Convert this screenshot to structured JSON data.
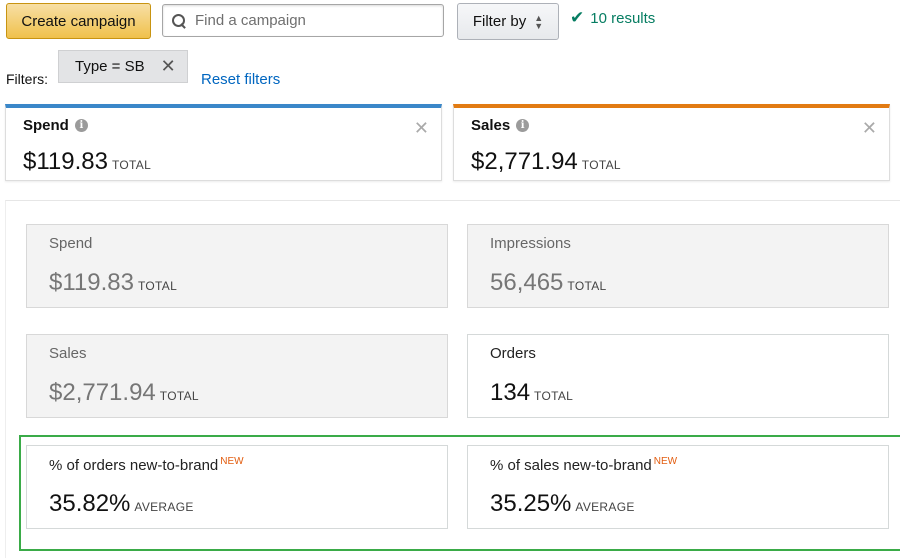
{
  "toolbar": {
    "create_label": "Create campaign",
    "search_placeholder": "Find a campaign",
    "filter_label": "Filter by",
    "results_text": "10 results"
  },
  "filters": {
    "label": "Filters:",
    "chip_label": "Type = SB",
    "reset_label": "Reset filters"
  },
  "metric_tiles": [
    {
      "title": "Spend",
      "value": "$119.83",
      "suffix": "TOTAL",
      "accent": "#3a87c9"
    },
    {
      "title": "Sales",
      "value": "$2,771.94",
      "suffix": "TOTAL",
      "accent": "#e27b12"
    }
  ],
  "cards": [
    {
      "title": "Spend",
      "value": "$119.83",
      "suffix": "TOTAL",
      "state": "muted"
    },
    {
      "title": "Impressions",
      "value": "56,465",
      "suffix": "TOTAL",
      "state": "muted"
    },
    {
      "title": "Sales",
      "value": "$2,771.94",
      "suffix": "TOTAL",
      "state": "muted"
    },
    {
      "title": "Orders",
      "value": "134",
      "suffix": "TOTAL",
      "state": "active"
    },
    {
      "title": "% of orders new-to-brand",
      "badge": "NEW",
      "value": "35.82%",
      "suffix": "AVERAGE",
      "state": "active"
    },
    {
      "title": "% of sales new-to-brand",
      "badge": "NEW",
      "value": "35.25%",
      "suffix": "AVERAGE",
      "state": "active"
    }
  ],
  "colors": {
    "highlight_border": "#3aab48",
    "new_badge": "#e25c0e",
    "results_green": "#067d62",
    "link_blue": "#0066c0"
  },
  "icons": {
    "search": "search-icon",
    "filter_sort": "updown-icon",
    "results": "check-icon",
    "info": "info-icon",
    "close": "close-icon"
  }
}
